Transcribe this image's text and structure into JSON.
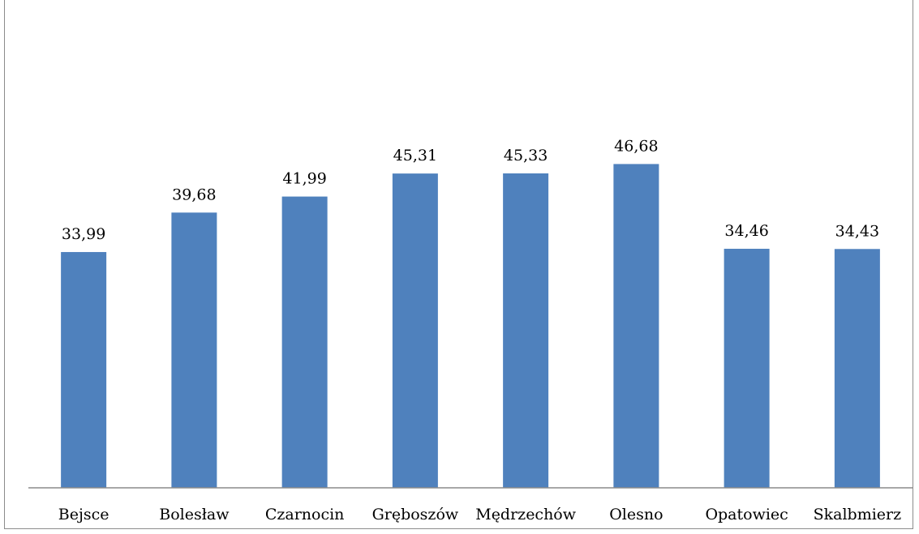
{
  "chart_data": {
    "type": "bar",
    "categories": [
      "Bejsce",
      "Bolesław",
      "Czarnocin",
      "Gręboszów",
      "Mędrzechów",
      "Olesno",
      "Opatowiec",
      "Skalbmierz"
    ],
    "values": [
      33.99,
      39.68,
      41.99,
      45.31,
      45.33,
      46.68,
      34.46,
      34.43
    ],
    "value_labels": [
      "33,99",
      "39,68",
      "41,99",
      "45,31",
      "45,33",
      "46,68",
      "34,46",
      "34,43"
    ],
    "ylim": [
      0,
      50
    ],
    "grid": false,
    "legend": "none",
    "colors": {
      "bar": "#4f81bd",
      "axis": "#8c8c8c"
    }
  }
}
